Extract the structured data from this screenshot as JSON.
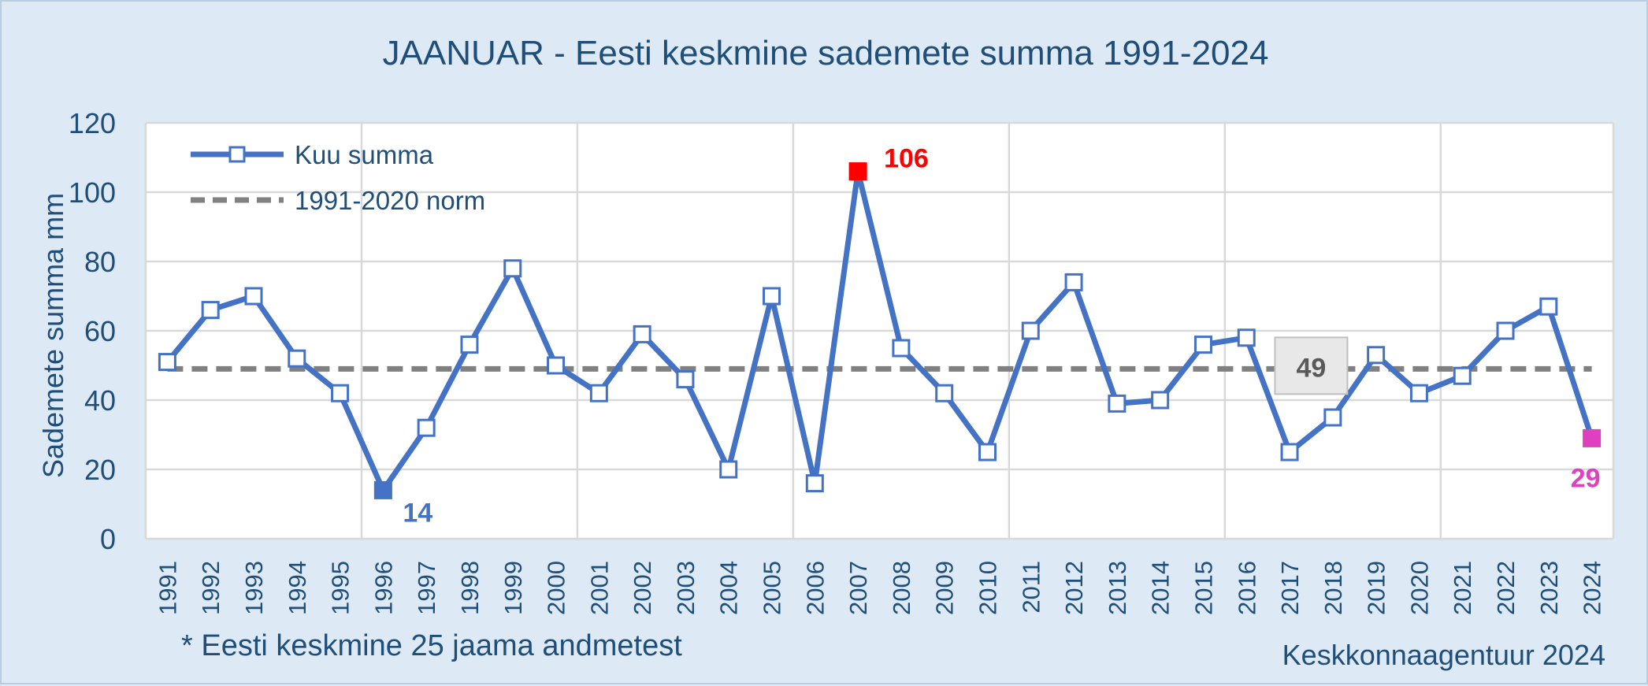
{
  "chart_data": {
    "type": "line",
    "title": "JAANUAR - Eesti keskmine sademete summa 1991-2024",
    "ylabel": "Sademete summa mm",
    "xlabel": "",
    "ylim": [
      0,
      120
    ],
    "yticks": [
      "0",
      "20",
      "40",
      "60",
      "80",
      "100",
      "120"
    ],
    "categories": [
      "1991",
      "1992",
      "1993",
      "1994",
      "1995",
      "1996",
      "1997",
      "1998",
      "1999",
      "2000",
      "2001",
      "2002",
      "2003",
      "2004",
      "2005",
      "2006",
      "2007",
      "2008",
      "2009",
      "2010",
      "2011",
      "2012",
      "2013",
      "2014",
      "2015",
      "2016",
      "2017",
      "2018",
      "2019",
      "2020",
      "2021",
      "2022",
      "2023",
      "2024"
    ],
    "series": [
      {
        "name": "Kuu summa",
        "values": [
          51,
          66,
          70,
          52,
          42,
          14,
          32,
          56,
          78,
          50,
          42,
          59,
          46,
          20,
          70,
          16,
          106,
          55,
          42,
          25,
          60,
          74,
          39,
          40,
          56,
          58,
          25,
          35,
          53,
          42,
          47,
          60,
          67,
          29
        ],
        "color": "#4472c4"
      },
      {
        "name": "1991-2020 norm",
        "value": 49,
        "color": "#808080"
      }
    ],
    "annotations": [
      {
        "label": "14",
        "category": "1996",
        "value": 14,
        "color": "#4472c4"
      },
      {
        "label": "106",
        "category": "2007",
        "value": 106,
        "color": "#ff0000"
      },
      {
        "label": "29",
        "category": "2024",
        "value": 29,
        "color": "#e040c0"
      },
      {
        "label": "49",
        "category": "2017",
        "value": 49,
        "color": "#595959"
      }
    ],
    "grid": true,
    "legend_position": "top-left"
  },
  "note": "* Eesti keskmine 25 jaama andmetest",
  "source": "Keskkonnaagentuur 2024"
}
